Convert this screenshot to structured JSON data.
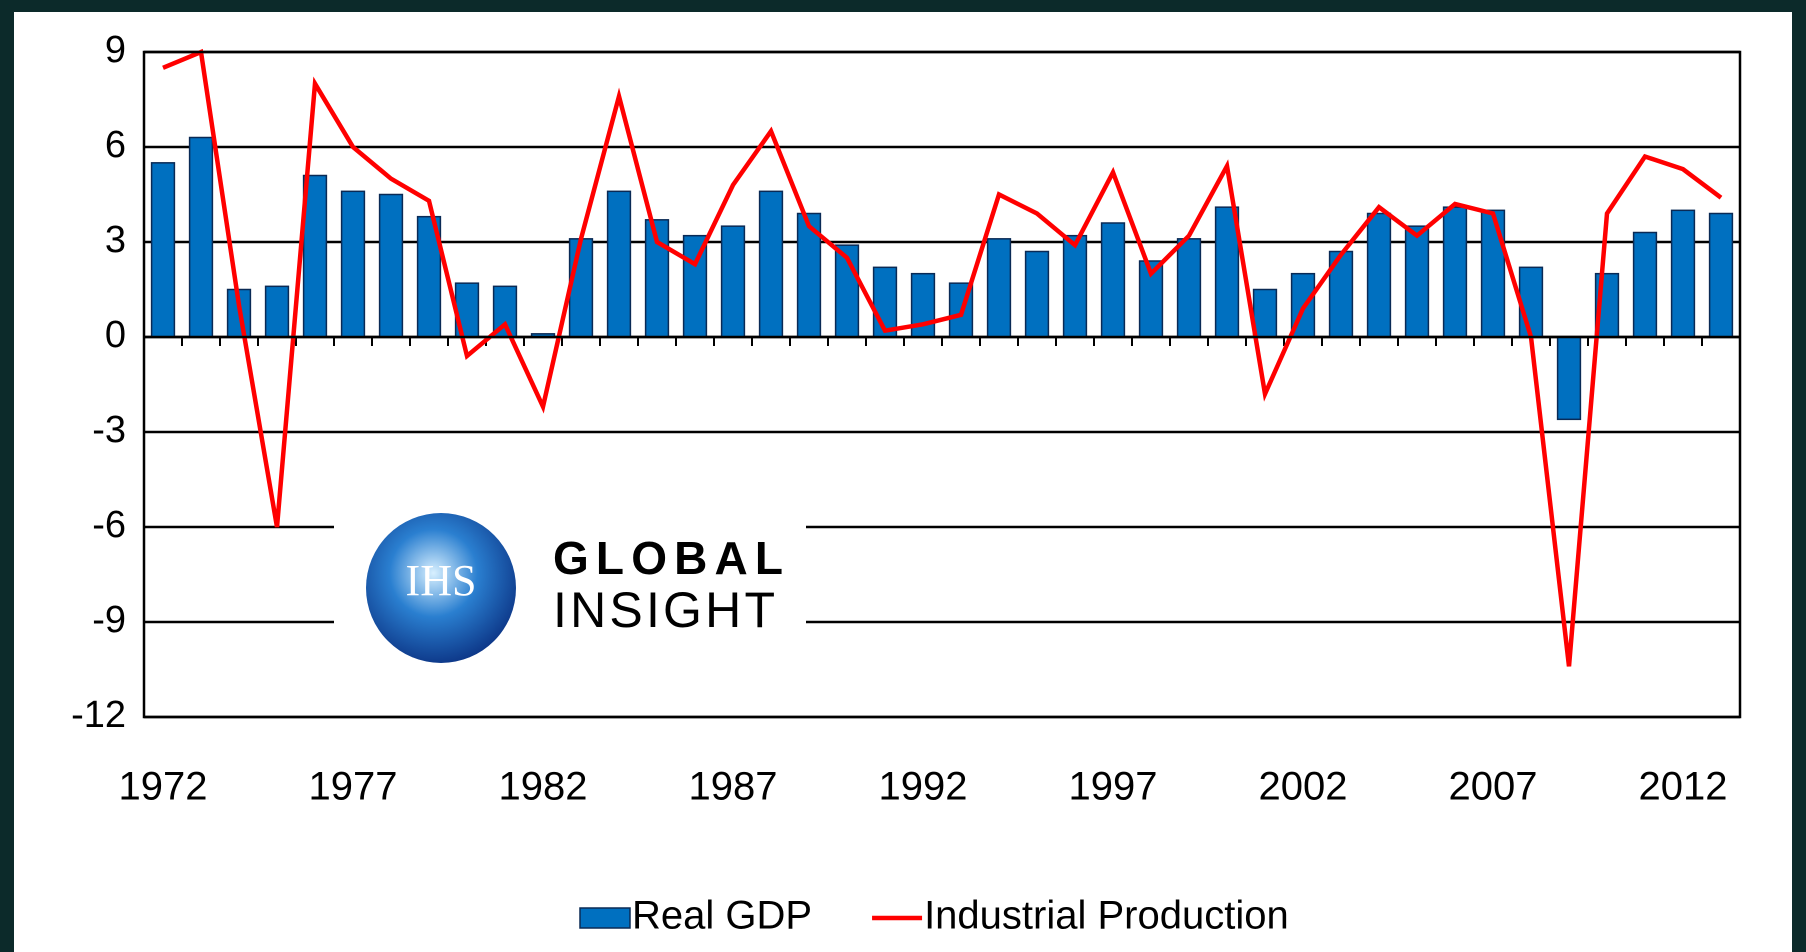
{
  "chart_data": {
    "type": "bar_line",
    "x": [
      1972,
      1973,
      1974,
      1975,
      1976,
      1977,
      1978,
      1979,
      1980,
      1981,
      1982,
      1983,
      1984,
      1985,
      1986,
      1987,
      1988,
      1989,
      1990,
      1991,
      1992,
      1993,
      1994,
      1995,
      1996,
      1997,
      1998,
      1999,
      2000,
      2001,
      2002,
      2003,
      2004,
      2005,
      2006,
      2007,
      2008,
      2009,
      2010,
      2011,
      2012,
      2013
    ],
    "series": [
      {
        "name": "Real GDP",
        "type": "bar",
        "color": "#0070c0",
        "values": [
          5.5,
          6.3,
          1.5,
          1.6,
          5.1,
          4.6,
          4.5,
          3.8,
          1.7,
          1.6,
          0.1,
          3.1,
          4.6,
          3.7,
          3.2,
          3.5,
          4.6,
          3.9,
          2.9,
          2.2,
          2.0,
          1.7,
          3.1,
          2.7,
          3.2,
          3.6,
          2.4,
          3.1,
          4.1,
          1.5,
          2.0,
          2.7,
          3.9,
          3.5,
          4.1,
          4.0,
          2.2,
          -2.6,
          2.0,
          3.3,
          4.0,
          3.9
        ]
      },
      {
        "name": "Industrial Production",
        "type": "line",
        "color": "#ff0000",
        "values": [
          8.5,
          9.0,
          1.0,
          -6.0,
          8.0,
          6.0,
          5.0,
          4.3,
          -0.6,
          0.4,
          -2.2,
          3.1,
          7.6,
          3.0,
          2.3,
          4.8,
          6.5,
          3.5,
          2.5,
          0.2,
          0.4,
          0.7,
          4.5,
          3.9,
          2.9,
          5.2,
          2.0,
          3.2,
          5.4,
          -1.8,
          0.9,
          2.6,
          4.1,
          3.2,
          4.2,
          3.9,
          0.0,
          -10.4,
          3.9,
          5.7,
          5.3,
          4.4
        ]
      }
    ],
    "xlim": [
      1971.5,
      2013.5
    ],
    "xticks": [
      1972,
      1977,
      1982,
      1987,
      1992,
      1997,
      2002,
      2007,
      2012
    ],
    "ylim": [
      -12,
      9
    ],
    "yticks": [
      -12,
      -9,
      -6,
      -3,
      0,
      3,
      6,
      9
    ],
    "grid": true,
    "legend": "bottom",
    "watermark": {
      "badge": "IHS",
      "line1": "GLOBAL",
      "line2": "INSIGHT"
    }
  }
}
